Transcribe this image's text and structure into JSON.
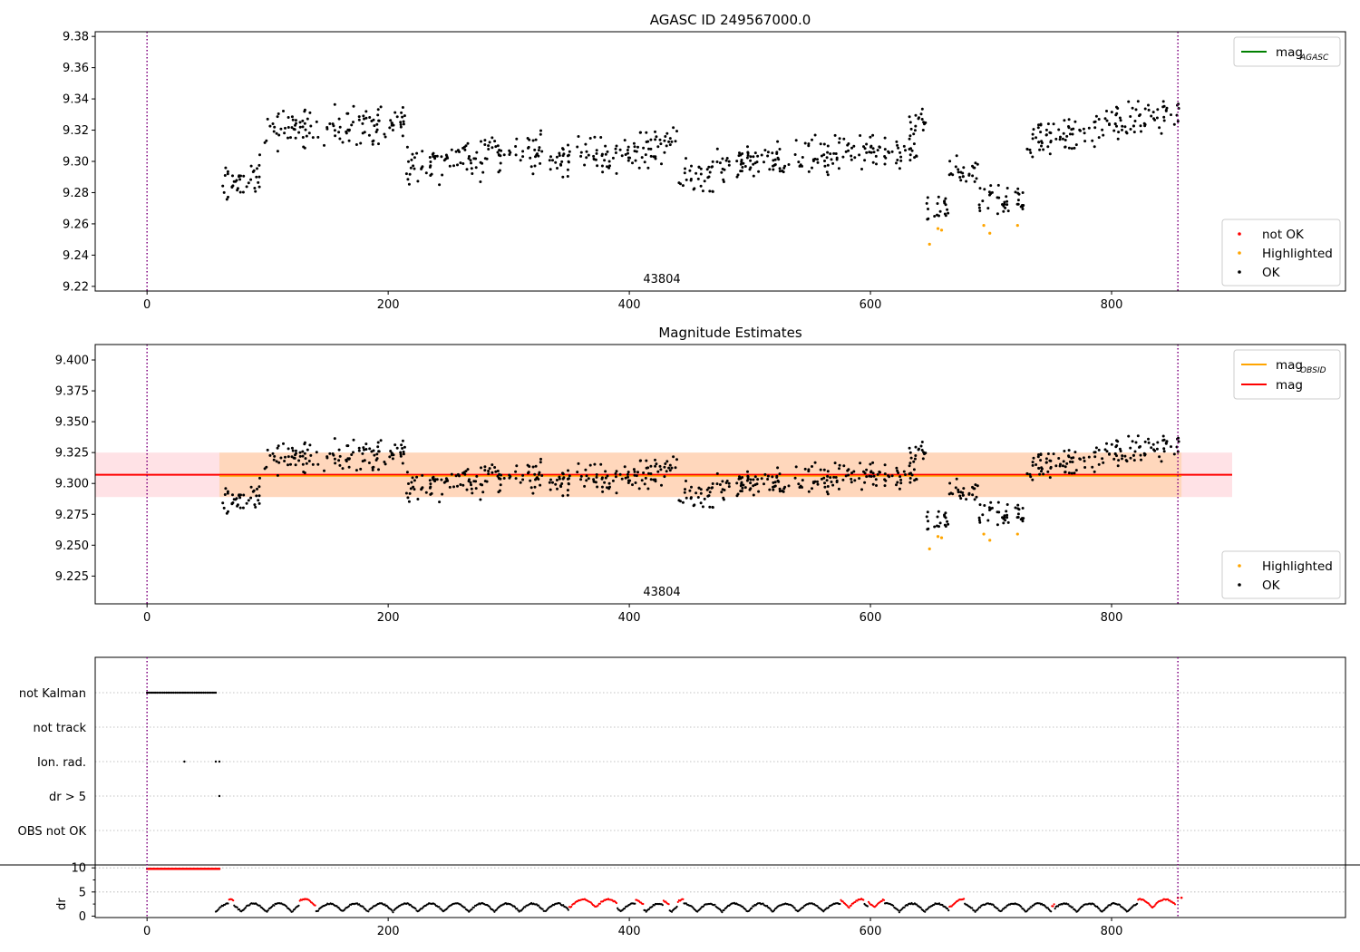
{
  "figure": {
    "panels": [
      {
        "title": "AGASC ID 249567000.0",
        "annotation": "43804",
        "legend_lines": [
          {
            "label": "mag",
            "subscript": "AGASC",
            "color": "#008000"
          }
        ],
        "legend_points": [
          {
            "label": "not OK",
            "color": "#ff0000"
          },
          {
            "label": "Highlighted",
            "color": "#ffa500"
          },
          {
            "label": "OK",
            "color": "#000000"
          }
        ]
      },
      {
        "title": "Magnitude Estimates",
        "annotation": "43804",
        "legend_lines": [
          {
            "label": "mag",
            "subscript": "OBSID",
            "color": "#ffa500"
          },
          {
            "label": "mag",
            "subscript": "",
            "color": "#ff0000"
          }
        ],
        "legend_points": [
          {
            "label": "Highlighted",
            "color": "#ffa500"
          },
          {
            "label": "OK",
            "color": "#000000"
          }
        ]
      },
      {
        "title": "",
        "flag_labels": [
          "not Kalman",
          "not track",
          "Ion. rad.",
          "dr > 5",
          "OBS not OK"
        ],
        "dr_label": "dr"
      }
    ]
  },
  "chart_data": [
    {
      "type": "scatter",
      "title": "AGASC ID 249567000.0",
      "xlabel": "",
      "ylabel": "",
      "xlim": [
        -43,
        994
      ],
      "ylim": [
        9.217,
        9.383
      ],
      "xticks": [
        0,
        200,
        400,
        600,
        800
      ],
      "yticks": [
        9.22,
        9.24,
        9.26,
        9.28,
        9.3,
        9.32,
        9.34,
        9.36,
        9.38
      ],
      "ytick_decimals": 2,
      "vlines": [
        0,
        855
      ],
      "legend": "top-right (lines), bottom-right (points)",
      "series": [
        {
          "name": "OK",
          "color": "#000000",
          "segments": [
            [
              60,
              85,
              9.285,
              0.012,
              0.004
            ],
            [
              85,
              97,
              9.29,
              0.012,
              0.004
            ],
            [
              97,
              215,
              9.322,
              0.012,
              0.005
            ],
            [
              215,
              330,
              9.303,
              0.013,
              0.009
            ],
            [
              330,
              440,
              9.306,
              0.011,
              0.011
            ],
            [
              440,
              480,
              9.292,
              0.012,
              0.006
            ],
            [
              480,
              640,
              9.303,
              0.011,
              0.011
            ],
            [
              632,
              646,
              9.325,
              0.007,
              0.002
            ],
            [
              646,
              665,
              9.268,
              0.009,
              0.003
            ],
            [
              665,
              690,
              9.293,
              0.01,
              0.002
            ],
            [
              690,
              728,
              9.274,
              0.011,
              0.002
            ],
            [
              728,
              800,
              9.317,
              0.012,
              0.007
            ],
            [
              800,
              858,
              9.328,
              0.012,
              0.01
            ]
          ]
        },
        {
          "name": "Highlighted",
          "color": "#ffa500",
          "x": [
            649,
            656,
            659,
            694,
            699,
            722
          ],
          "y": [
            9.247,
            9.257,
            9.256,
            9.259,
            9.254,
            9.259
          ]
        },
        {
          "name": "not OK",
          "color": "#ff0000",
          "x": [],
          "y": []
        }
      ]
    },
    {
      "type": "scatter",
      "title": "Magnitude Estimates",
      "xlabel": "",
      "ylabel": "",
      "xlim": [
        -43,
        994
      ],
      "ylim": [
        9.2025,
        9.4125
      ],
      "xticks": [
        0,
        200,
        400,
        600,
        800
      ],
      "yticks": [
        9.225,
        9.25,
        9.275,
        9.3,
        9.325,
        9.35,
        9.375,
        9.4
      ],
      "ytick_decimals": 3,
      "vlines": [
        0,
        855
      ],
      "mag": 9.307,
      "mag_obsid": 9.306,
      "band_inner": [
        9.289,
        9.325
      ],
      "band_outer": [
        9.289,
        9.325
      ],
      "band_outer_xrange": [
        -43,
        900
      ],
      "band_inner_xrange": [
        60,
        858
      ],
      "legend": "top-right (lines), bottom-right (points)",
      "series": [
        {
          "name": "OK",
          "color": "#000000",
          "same_as_panel": 0
        },
        {
          "name": "Highlighted",
          "color": "#ffa500",
          "same_as_panel": 0
        },
        {
          "name": "mag",
          "color": "#ff0000",
          "value": 9.307
        },
        {
          "name": "mag_OBSID",
          "color": "#ffa500",
          "value": 9.306
        }
      ]
    },
    {
      "type": "scatter",
      "title": "",
      "xlim": [
        -43,
        994
      ],
      "xticks": [
        0,
        200,
        400,
        600,
        800
      ],
      "vlines": [
        0,
        855
      ],
      "flags": [
        {
          "name": "not Kalman",
          "x_range": [
            0,
            57
          ],
          "count": 40,
          "extra_x": []
        },
        {
          "name": "not track",
          "x_range": [],
          "count": 0,
          "extra_x": []
        },
        {
          "name": "Ion. rad.",
          "x_range": [],
          "count": 0,
          "extra_x": [
            31,
            57,
            60
          ]
        },
        {
          "name": "dr > 5",
          "x_range": [],
          "count": 0,
          "extra_x": [
            60
          ]
        },
        {
          "name": "OBS not OK",
          "x_range": [],
          "count": 0,
          "extra_x": []
        }
      ],
      "dr": {
        "ylim": [
          -0.3,
          10.6
        ],
        "yticks": [
          0,
          5,
          10
        ],
        "hline": 10,
        "above_limit": {
          "x_range": [
            0,
            60
          ],
          "value": 9.8,
          "color": "#ff0000",
          "count": 65
        },
        "red_segments": [
          [
            68,
            72
          ],
          [
            126,
            140
          ],
          [
            350,
            390
          ],
          [
            405,
            412
          ],
          [
            428,
            433
          ],
          [
            440,
            445
          ],
          [
            575,
            595
          ],
          [
            598,
            612
          ],
          [
            665,
            678
          ],
          [
            750,
            753
          ],
          [
            822,
            858
          ]
        ],
        "endpoint": {
          "x": [
            855,
            858
          ],
          "value": 3.8,
          "color": "#ff0000"
        }
      }
    }
  ]
}
